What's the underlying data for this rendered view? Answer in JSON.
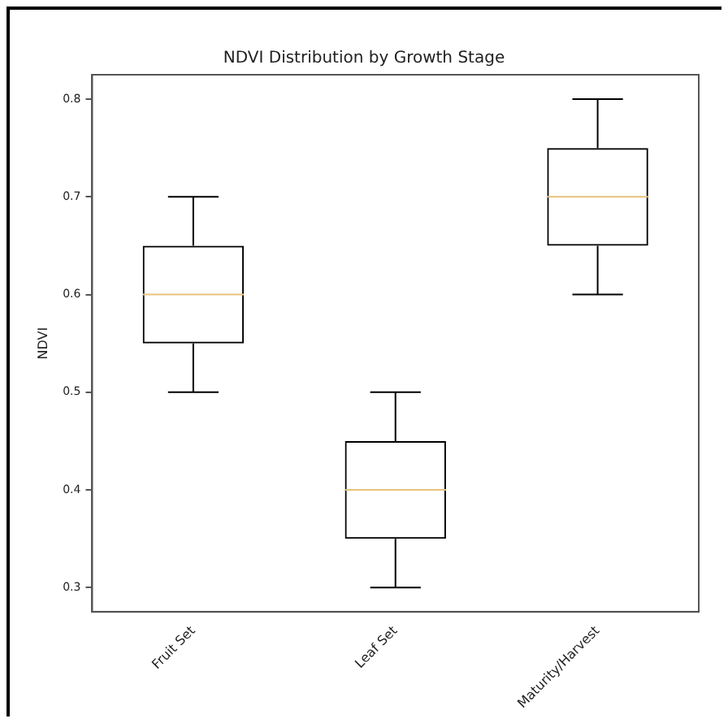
{
  "chart_data": {
    "type": "box",
    "title": "NDVI Distribution by Growth Stage",
    "ylabel": "NDVI",
    "categories": [
      "Fruit Set",
      "Leaf Set",
      "Maturity/Harvest"
    ],
    "boxes": [
      {
        "low": 0.5,
        "q1": 0.55,
        "median": 0.6,
        "q3": 0.65,
        "high": 0.7
      },
      {
        "low": 0.3,
        "q1": 0.35,
        "median": 0.4,
        "q3": 0.45,
        "high": 0.5
      },
      {
        "low": 0.6,
        "q1": 0.65,
        "median": 0.7,
        "q3": 0.75,
        "high": 0.8
      }
    ],
    "color": "#000000",
    "ylim": [
      0.275,
      0.825
    ],
    "yticks": [
      0.3,
      0.4,
      0.5,
      0.6,
      0.7,
      0.8
    ],
    "grid": false,
    "legend": false
  }
}
